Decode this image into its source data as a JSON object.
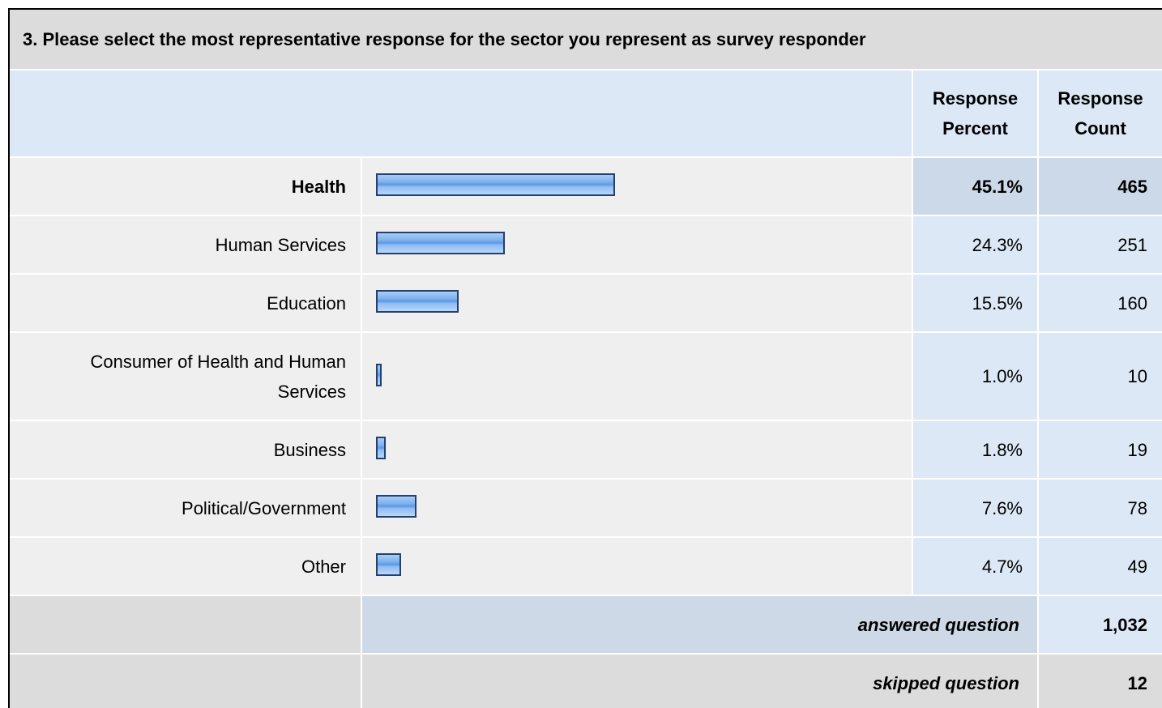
{
  "title": "3. Please select the most representative response for the sector you represent as survey responder",
  "header": {
    "percent": "Response Percent",
    "count": "Response Count"
  },
  "rows": [
    {
      "label": "Health",
      "percent": 45.1,
      "percent_label": "45.1%",
      "count": 465
    },
    {
      "label": "Human Services",
      "percent": 24.3,
      "percent_label": "24.3%",
      "count": 251
    },
    {
      "label": "Education",
      "percent": 15.5,
      "percent_label": "15.5%",
      "count": 160
    },
    {
      "label": "Consumer of Health and Human Services",
      "percent": 1.0,
      "percent_label": "1.0%",
      "count": 10
    },
    {
      "label": "Business",
      "percent": 1.8,
      "percent_label": "1.8%",
      "count": 19
    },
    {
      "label": "Political/Government",
      "percent": 7.6,
      "percent_label": "7.6%",
      "count": 78
    },
    {
      "label": "Other",
      "percent": 4.7,
      "percent_label": "4.7%",
      "count": 49
    }
  ],
  "footer": [
    {
      "label": "answered question",
      "count": "1,032"
    },
    {
      "label": "skipped question",
      "count": 12
    }
  ]
}
